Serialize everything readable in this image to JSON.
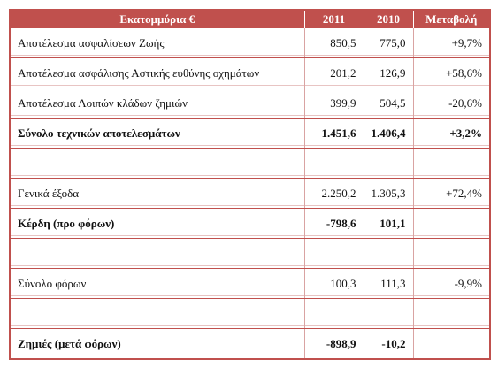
{
  "header": [
    "Εκατομμύρια €",
    "2011",
    "2010",
    "Μεταβολή"
  ],
  "rows": [
    [
      "Αποτέλεσμα ασφαλίσεων Ζωής",
      "850,5",
      "775,0",
      "+9,7%"
    ],
    [
      "Αποτέλεσμα ασφάλισης Αστικής ευθύνης οχημάτων",
      "201,2",
      "126,9",
      "+58,6%"
    ],
    [
      "Αποτέλεσμα Λοιπών κλάδων ζημιών",
      "399,9",
      "504,5",
      "-20,6%"
    ],
    [
      "Σύνολο τεχνικών αποτελεσμάτων",
      "1.451,6",
      "1.406,4",
      "+3,2%"
    ],
    [
      "Γενικά έξοδα",
      "2.250,2",
      "1.305,3",
      "+72,4%"
    ],
    [
      "Κέρδη (προ φόρων)",
      "-798,6",
      "101,1"
    ],
    [
      "Σύνολο φόρων",
      "100,3",
      "111,3",
      "-9,9%"
    ],
    [
      "Ζημιές (μετά φόρων)",
      "-898,9",
      "-10,2"
    ]
  ]
}
